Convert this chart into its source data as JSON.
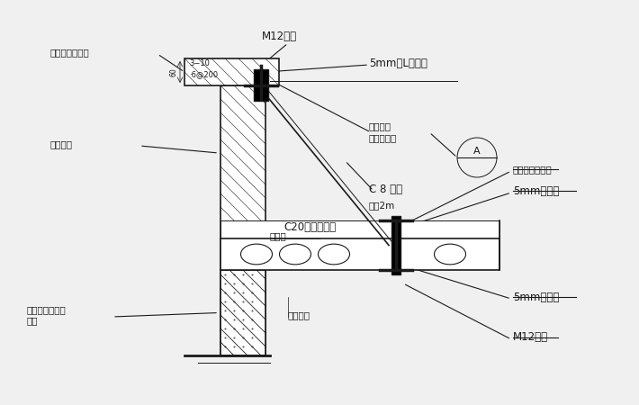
{
  "bg_color": "#f0f0f0",
  "line_color": "#1a1a1a",
  "annotations": {
    "M12_top": "M12锚栓",
    "5mm_L_top": "5mm厚L形钢板",
    "groove_weld_top_1": "槽钢端头",
    "groove_weld_top_2": "与钢板焊接",
    "C8_channel": "C 8 槽钢",
    "spacing_2m": "间距2m",
    "nv_wall": "女儿墙",
    "C20_concrete": "C20细石混凝土",
    "precast_slab": "预制楼板",
    "groove_weld_right": "槽钢与钢板焊接",
    "5mm_plate_right_top": "5mm厚钢板",
    "5mm_plate_right_bot": "5mm厚钢板",
    "M12_bot": "M12锚栓",
    "rc_cap": "钢筋混凝土压顶",
    "orig_cap": "原有压顶",
    "orig_rc_beam": "原有钢筋混凝土\n圈梁"
  }
}
